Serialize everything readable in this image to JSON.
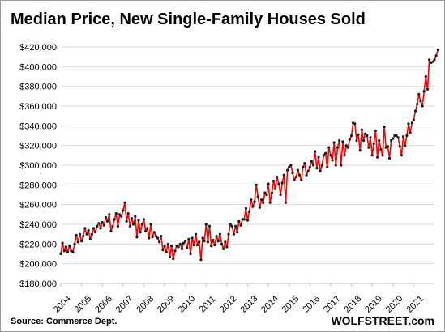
{
  "chart_data": {
    "type": "line",
    "title": "Median Price, New Single-Family Houses Sold",
    "source": "Source: Commerce Dept.",
    "watermark": "WOLFSTREET.com",
    "xlabel": "",
    "ylabel": "",
    "x_ticks": [
      "2004",
      "2005",
      "2006",
      "2007",
      "2008",
      "2009",
      "2010",
      "2011",
      "2012",
      "2013",
      "2014",
      "2015",
      "2016",
      "2017",
      "2018",
      "2019",
      "2020",
      "2021"
    ],
    "y_ticks": [
      "$180,000",
      "$200,000",
      "$220,000",
      "$240,000",
      "$260,000",
      "$280,000",
      "$300,000",
      "$320,000",
      "$340,000",
      "$360,000",
      "$380,000",
      "$400,000",
      "$420,000"
    ],
    "ylim": [
      180000,
      420000
    ],
    "xlim": [
      2004,
      2022
    ],
    "grid": "horizontal",
    "colors": {
      "line": "#ff0000",
      "marker": "#1a1a1a",
      "grid": "#d9d9d9"
    },
    "series": [
      {
        "x_start": "2004-01",
        "frequency": "monthly",
        "values": [
          210000,
          221000,
          213000,
          217000,
          212000,
          218000,
          213000,
          212000,
          220000,
          229000,
          222000,
          230000,
          223000,
          228000,
          236000,
          230000,
          234000,
          225000,
          230000,
          236000,
          232000,
          238000,
          241000,
          236000,
          242000,
          239000,
          247000,
          243000,
          250000,
          233000,
          238000,
          245000,
          251000,
          238000,
          250000,
          248000,
          254000,
          262000,
          243000,
          251000,
          238000,
          246000,
          240000,
          248000,
          227000,
          244000,
          232000,
          240000,
          245000,
          233000,
          236000,
          226000,
          240000,
          227000,
          232000,
          228000,
          226000,
          222000,
          228000,
          214000,
          218000,
          212000,
          220000,
          207000,
          218000,
          205000,
          213000,
          218000,
          217000,
          220000,
          215000,
          221000,
          223000,
          216000,
          225000,
          210000,
          226000,
          219000,
          230000,
          219000,
          222000,
          204000,
          226000,
          223000,
          240000,
          222000,
          238000,
          218000,
          224000,
          219000,
          228000,
          223000,
          230000,
          220000,
          215000,
          222000,
          217000,
          230000,
          240000,
          238000,
          230000,
          238000,
          232000,
          243000,
          239000,
          245000,
          245000,
          256000,
          244000,
          253000,
          265000,
          258000,
          263000,
          280000,
          268000,
          257000,
          265000,
          262000,
          272000,
          270000,
          281000,
          262000,
          272000,
          284000,
          276000,
          288000,
          281000,
          270000,
          282000,
          290000,
          262000,
          295000,
          298000,
          300000,
          292000,
          285000,
          288000,
          295000,
          290000,
          285000,
          298000,
          302000,
          290000,
          294000,
          298000,
          304000,
          300000,
          314000,
          297000,
          308000,
          294000,
          300000,
          310000,
          312000,
          298000,
          318000,
          310000,
          305000,
          323000,
          300000,
          318000,
          325000,
          300000,
          324000,
          310000,
          320000,
          318000,
          326000,
          330000,
          343000,
          342000,
          325000,
          331000,
          315000,
          336000,
          325000,
          332000,
          330000,
          318000,
          328000,
          310000,
          322000,
          335000,
          308000,
          325000,
          316000,
          310000,
          339000,
          318000,
          319000,
          307000,
          325000,
          327000,
          330000,
          330000,
          328000,
          319000,
          310000,
          329000,
          320000,
          330000,
          342000,
          333000,
          343000,
          346000,
          355000,
          362000,
          372000,
          365000,
          360000,
          375000,
          390000,
          377000,
          407000,
          404000,
          405000,
          407000,
          411000,
          417000
        ]
      }
    ]
  }
}
